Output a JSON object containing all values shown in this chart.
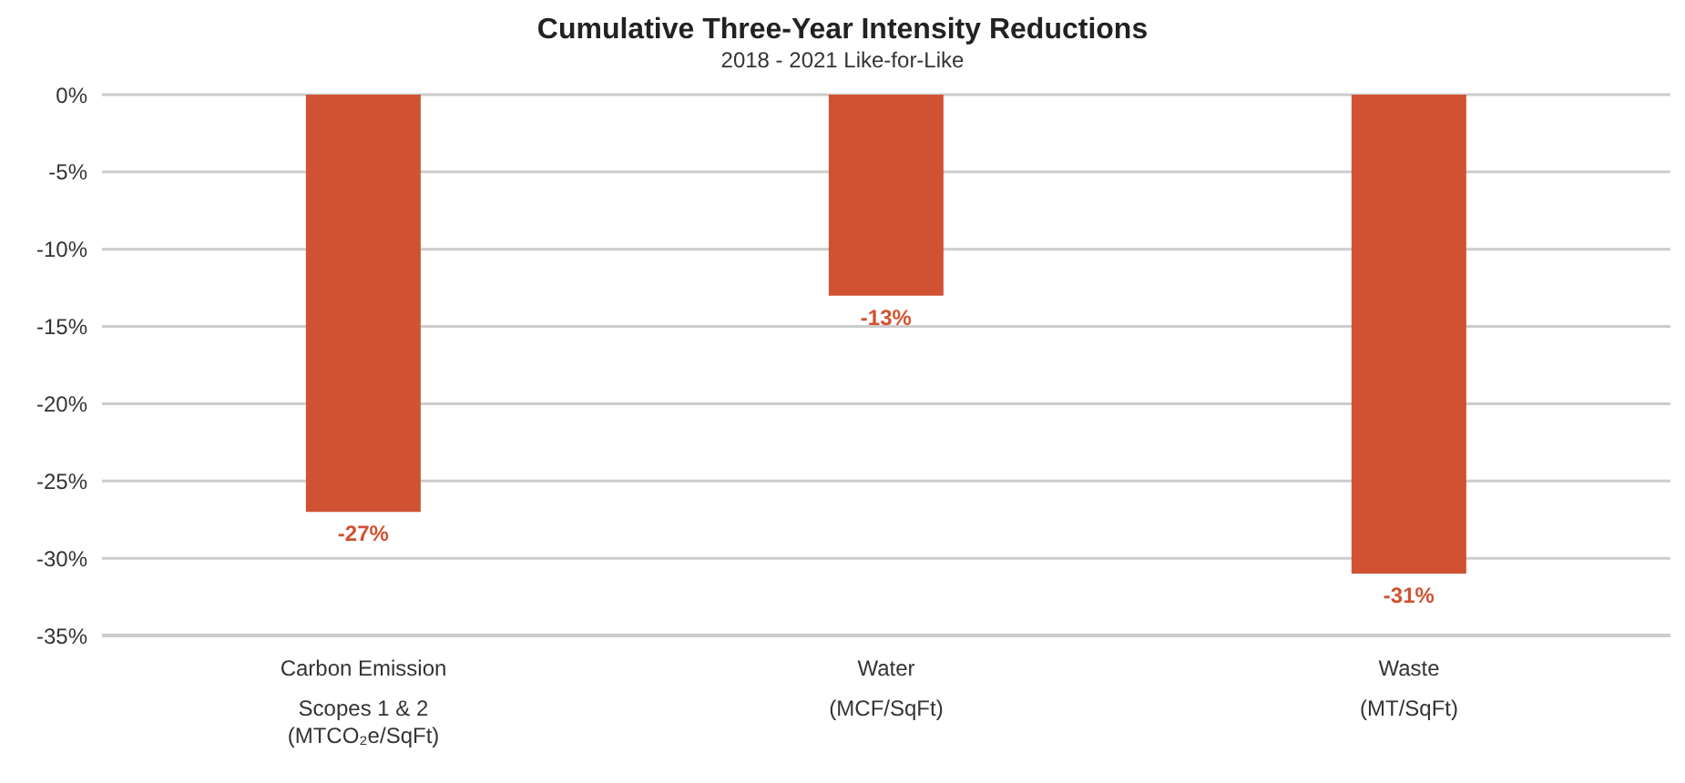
{
  "chart_data": {
    "type": "bar",
    "title": "Cumulative Three-Year Intensity Reductions",
    "subtitle": "2018 - 2021 Like-for-Like",
    "categories": [
      "Carbon Emission\nScopes 1 & 2\n(MTCO₂e/SqFt)",
      "Water\n(MCF/SqFt)",
      "Waste\n(MT/SqFt)"
    ],
    "values": [
      -27,
      -13,
      -31
    ],
    "value_labels": [
      "-27%",
      "-13%",
      "-31%"
    ],
    "color": "#d05232",
    "ylim": [
      -35,
      0
    ],
    "yticks": [
      {
        "value": 0,
        "label": "0%"
      },
      {
        "value": -5,
        "label": "-5%"
      },
      {
        "value": -10,
        "label": "-10%"
      },
      {
        "value": -15,
        "label": "-15%"
      },
      {
        "value": -20,
        "label": "-20%"
      },
      {
        "value": -25,
        "label": "-25%"
      },
      {
        "value": -30,
        "label": "-30%"
      },
      {
        "value": -35,
        "label": "-35%"
      }
    ],
    "grid": "y",
    "legend": false
  }
}
